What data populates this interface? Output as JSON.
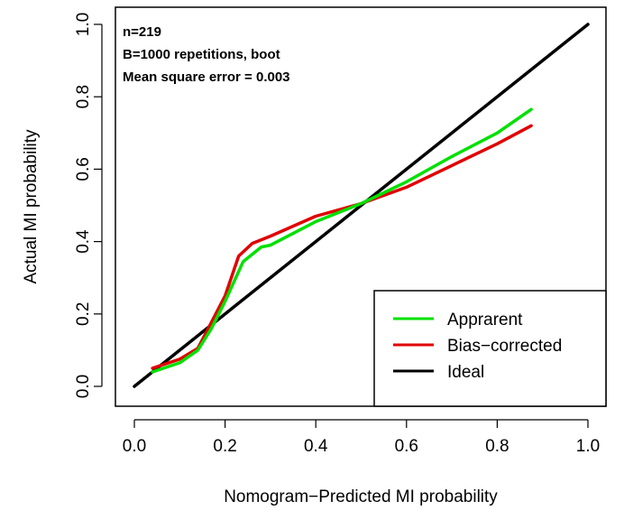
{
  "chart_data": {
    "type": "line",
    "xlabel": "Nomogram−Predicted MI probability",
    "ylabel": "Actual MI probability",
    "xlim": [
      0,
      1
    ],
    "ylim": [
      0,
      1
    ],
    "xticks": [
      "0.0",
      "0.2",
      "0.4",
      "0.6",
      "0.8",
      "1.0"
    ],
    "yticks": [
      "0.0",
      "0.2",
      "0.4",
      "0.6",
      "0.8",
      "1.0"
    ],
    "grid": false,
    "annotations": [
      "n=219",
      "B=1000 repetitions, boot",
      "Mean square error = 0.003"
    ],
    "legend_position": "bottom-right",
    "series": [
      {
        "name": "Apprarent",
        "color": "#00e000",
        "x": [
          0.04,
          0.1,
          0.14,
          0.17,
          0.2,
          0.24,
          0.28,
          0.3,
          0.4,
          0.5,
          0.6,
          0.7,
          0.8,
          0.875
        ],
        "y": [
          0.04,
          0.065,
          0.1,
          0.16,
          0.235,
          0.345,
          0.385,
          0.39,
          0.455,
          0.505,
          0.565,
          0.635,
          0.7,
          0.765
        ]
      },
      {
        "name": "Bias−corrected",
        "color": "#e00000",
        "x": [
          0.04,
          0.1,
          0.14,
          0.165,
          0.2,
          0.23,
          0.26,
          0.28,
          0.3,
          0.4,
          0.5,
          0.6,
          0.7,
          0.8,
          0.875
        ],
        "y": [
          0.05,
          0.075,
          0.105,
          0.165,
          0.25,
          0.36,
          0.395,
          0.405,
          0.415,
          0.47,
          0.505,
          0.55,
          0.61,
          0.67,
          0.72
        ]
      },
      {
        "name": "Ideal",
        "color": "#000000",
        "x": [
          0,
          1
        ],
        "y": [
          0,
          1
        ]
      }
    ]
  }
}
